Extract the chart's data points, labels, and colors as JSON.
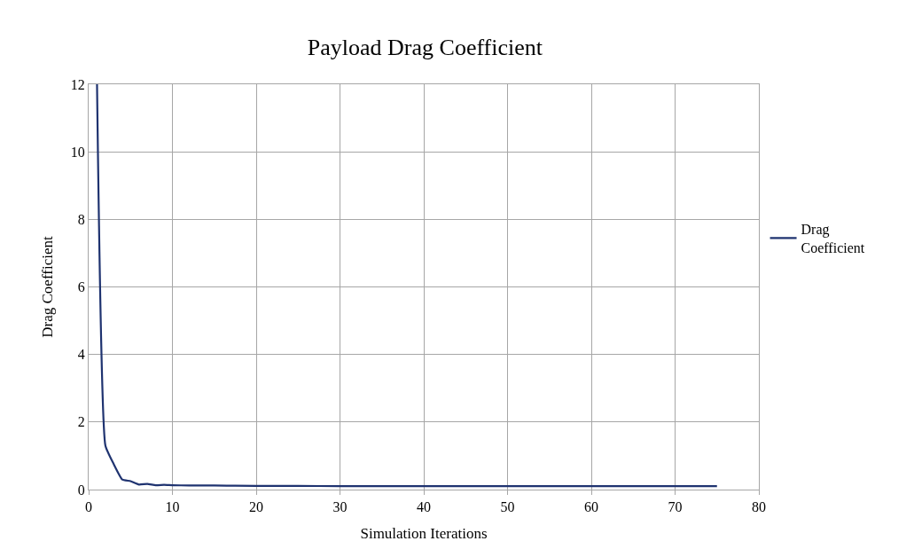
{
  "chart_data": {
    "type": "line",
    "title": "Payload Drag Coefficient",
    "xlabel": "Simulation Iterations",
    "ylabel": "Drag Coefficient",
    "x": [
      1,
      2,
      3,
      4,
      5,
      6,
      7,
      8,
      9,
      10,
      12,
      15,
      20,
      25,
      30,
      40,
      50,
      60,
      75
    ],
    "series": [
      {
        "name": "Drag Coefficient",
        "color": "#1f3370",
        "values": [
          12,
          1.3,
          0.75,
          0.3,
          0.25,
          0.15,
          0.17,
          0.13,
          0.14,
          0.13,
          0.12,
          0.12,
          0.11,
          0.11,
          0.1,
          0.1,
          0.1,
          0.1,
          0.1
        ]
      }
    ],
    "xlim": [
      0,
      80
    ],
    "xticks": [
      0,
      10,
      20,
      30,
      40,
      50,
      60,
      70,
      80
    ],
    "ylim": [
      0,
      12
    ],
    "yticks": [
      0,
      2,
      4,
      6,
      8,
      10,
      12
    ],
    "grid": true,
    "legend": "right",
    "marker": "none",
    "line_style": "solid"
  }
}
